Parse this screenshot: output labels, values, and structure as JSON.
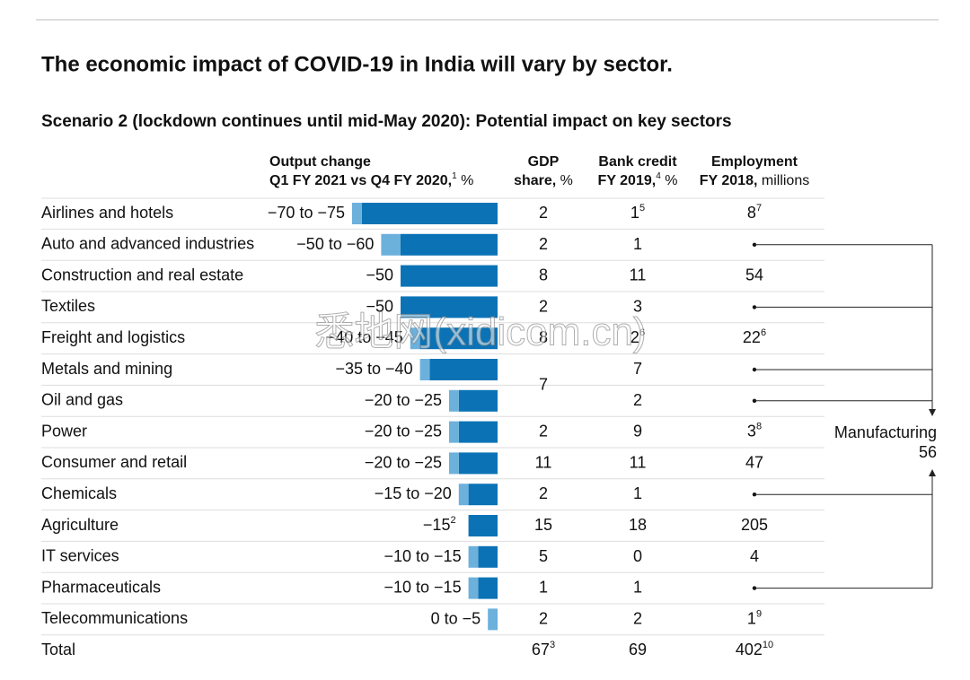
{
  "header": {
    "title": "The economic impact of COVID-19 in India will vary by sector.",
    "subtitle": "Scenario 2 (lockdown continues until mid-May 2020): Potential impact on key sectors"
  },
  "columns": {
    "output": {
      "line1": "Output change",
      "line2": "Q1 FY 2021 vs Q4 FY 2020,",
      "line2_note": "1",
      "line2_unit": "%"
    },
    "gdp": {
      "line1": "GDP",
      "line2": "share,",
      "line2_unit": "%"
    },
    "credit": {
      "line1": "Bank credit",
      "line2": "FY 2019,",
      "line2_unit": "%",
      "line2_note": "4"
    },
    "employment": {
      "line1": "Employment",
      "line2": "FY 2018,",
      "line2_unit": "millions"
    }
  },
  "rows": [
    {
      "sector": "Airlines and hotels",
      "output_label": "−70 to −75",
      "output": [
        -70,
        -75
      ],
      "gdp": 2,
      "credit": 1,
      "credit_note": "5",
      "employment": 8,
      "employment_note": "7"
    },
    {
      "sector": "Auto and advanced industries",
      "output_label": "−50 to −60",
      "output": [
        -50,
        -60
      ],
      "gdp": 2,
      "credit": 1,
      "employment": null
    },
    {
      "sector": "Construction and real estate",
      "output_label": "−50",
      "output": [
        -50,
        -50
      ],
      "gdp": 8,
      "credit": 11,
      "employment": 54
    },
    {
      "sector": "Textiles",
      "output_label": "−50",
      "output": [
        -50,
        -50
      ],
      "gdp": 2,
      "credit": 3,
      "employment": null
    },
    {
      "sector": "Freight and logistics",
      "output_label": "−40 to −45",
      "output": [
        -40,
        -45
      ],
      "gdp": 8,
      "credit": 2,
      "credit_note": "6",
      "employment": 22,
      "employment_note": "6"
    },
    {
      "sector": "Metals and mining",
      "output_label": "−35 to −40",
      "output": [
        -35,
        -40
      ],
      "gdp": 7,
      "credit": 7,
      "employment": null
    },
    {
      "sector": "Oil and gas",
      "output_label": "−20 to −25",
      "output": [
        -20,
        -25
      ],
      "gdp": null,
      "credit": 2,
      "employment": null
    },
    {
      "sector": "Power",
      "output_label": "−20 to −25",
      "output": [
        -20,
        -25
      ],
      "gdp": 2,
      "credit": 9,
      "employment": 3,
      "employment_note": "8"
    },
    {
      "sector": "Consumer and retail",
      "output_label": "−20 to −25",
      "output": [
        -20,
        -25
      ],
      "gdp": 11,
      "credit": 11,
      "employment": 47
    },
    {
      "sector": "Chemicals",
      "output_label": "−15 to −20",
      "output": [
        -15,
        -20
      ],
      "gdp": 2,
      "credit": 1,
      "employment": null
    },
    {
      "sector": "Agriculture",
      "output_label": "−15",
      "output_note": "2",
      "output": [
        -15,
        -15
      ],
      "gdp": 15,
      "credit": 18,
      "employment": 205
    },
    {
      "sector": "IT services",
      "output_label": "−10 to −15",
      "output": [
        -10,
        -15
      ],
      "gdp": 5,
      "credit": 0,
      "employment": 4
    },
    {
      "sector": "Pharmaceuticals",
      "output_label": "−10 to −15",
      "output": [
        -10,
        -15
      ],
      "gdp": 1,
      "credit": 1,
      "employment": null
    },
    {
      "sector": "Telecommunications",
      "output_label": "0 to −5",
      "output": [
        0,
        -5
      ],
      "gdp": 2,
      "credit": 2,
      "employment": 1,
      "employment_note": "9"
    }
  ],
  "total": {
    "label": "Total",
    "gdp": 67,
    "gdp_note": "3",
    "credit": 69,
    "employment": 402,
    "employment_note": "10"
  },
  "manufacturing": {
    "label": "Manufacturing",
    "value": 56
  },
  "watermark": "悉地网(xidicom.cn)"
}
